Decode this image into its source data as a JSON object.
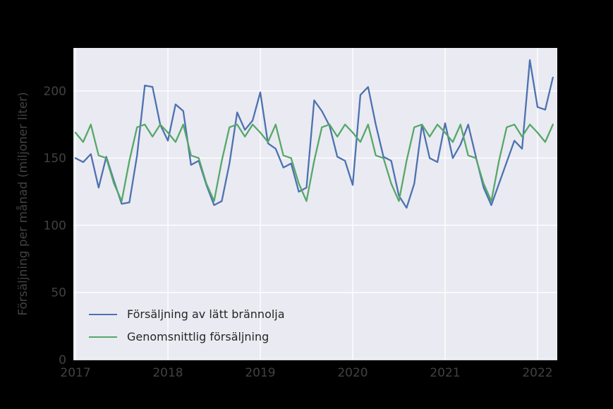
{
  "chart_data": {
    "type": "line",
    "ylabel": "Försäljning per månad (miljoner liter)",
    "x_tick_labels": [
      "2017",
      "2018",
      "2019",
      "2020",
      "2021",
      "2022"
    ],
    "x_tick_years": [
      2017,
      2018,
      2019,
      2020,
      2021,
      2022
    ],
    "y_tick_labels": [
      "0",
      "50",
      "100",
      "150",
      "200"
    ],
    "y_ticks": [
      0,
      50,
      100,
      150,
      200
    ],
    "xlim": [
      2016.977,
      2022.214
    ],
    "ylim": [
      0,
      232
    ],
    "grid": true,
    "legend_position": "lower left",
    "x_start_year": 2017,
    "x_step_months": 1,
    "series": [
      {
        "name": "Försäljning av lätt brännolja",
        "color": "#4c72b0",
        "values": [
          150,
          147,
          153,
          128,
          151,
          133,
          116,
          117,
          152,
          204,
          203,
          175,
          163,
          190,
          185,
          145,
          148,
          130,
          115,
          118,
          146,
          184,
          171,
          178,
          199,
          161,
          157,
          143,
          146,
          125,
          128,
          193,
          185,
          174,
          151,
          148,
          130,
          197,
          203,
          175,
          151,
          148,
          122,
          113,
          131,
          175,
          150,
          147,
          176,
          150,
          160,
          175,
          151,
          128,
          115,
          131,
          147,
          163,
          157,
          223,
          188,
          186,
          210
        ]
      },
      {
        "name": "Genomsnittlig försäljning",
        "color": "#55a868",
        "values": [
          169,
          162,
          175,
          152,
          150,
          131,
          118,
          148,
          173,
          175,
          166,
          175,
          169,
          162,
          175,
          152,
          150,
          131,
          118,
          148,
          173,
          175,
          166,
          175,
          169,
          162,
          175,
          152,
          150,
          131,
          118,
          148,
          173,
          175,
          166,
          175,
          169,
          162,
          175,
          152,
          150,
          131,
          118,
          148,
          173,
          175,
          166,
          175,
          169,
          162,
          175,
          152,
          150,
          131,
          118,
          148,
          173,
          175,
          166,
          175,
          169,
          162,
          175
        ]
      }
    ],
    "colors": {
      "figure_bg": "#000000",
      "axes_bg": "#eaeaf2",
      "grid": "#ffffff",
      "tick_text": "#414141",
      "legend_text": "#262626"
    }
  },
  "legend": {
    "item1": "Försäljning av lätt brännolja",
    "item2": "Genomsnittlig försäljning"
  }
}
